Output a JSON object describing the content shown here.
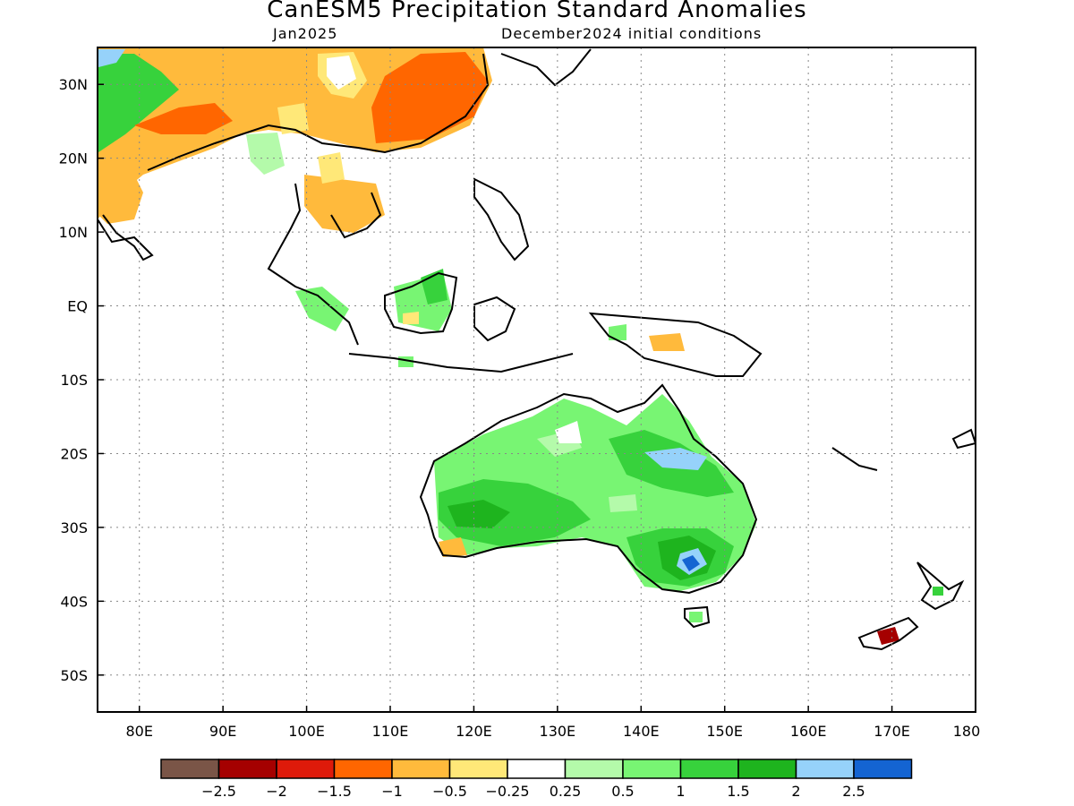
{
  "title": "CanESM5 Precipitation Standard Anomalies",
  "valid_month": "Jan2025",
  "initial_conditions": "December2024 initial conditions",
  "map": {
    "lon_range": [
      75,
      180
    ],
    "lat_range": [
      -55,
      35
    ],
    "x_ticks": [
      {
        "lon": 80,
        "label": "80E"
      },
      {
        "lon": 90,
        "label": "90E"
      },
      {
        "lon": 100,
        "label": "100E"
      },
      {
        "lon": 110,
        "label": "110E"
      },
      {
        "lon": 120,
        "label": "120E"
      },
      {
        "lon": 130,
        "label": "130E"
      },
      {
        "lon": 140,
        "label": "140E"
      },
      {
        "lon": 150,
        "label": "150E"
      },
      {
        "lon": 160,
        "label": "160E"
      },
      {
        "lon": 170,
        "label": "170E"
      },
      {
        "lon": 180,
        "label": "180"
      }
    ],
    "y_ticks": [
      {
        "lat": 30,
        "label": "30N"
      },
      {
        "lat": 20,
        "label": "20N"
      },
      {
        "lat": 10,
        "label": "10N"
      },
      {
        "lat": 0,
        "label": "EQ"
      },
      {
        "lat": -10,
        "label": "10S"
      },
      {
        "lat": -20,
        "label": "20S"
      },
      {
        "lat": -30,
        "label": "30S"
      },
      {
        "lat": -40,
        "label": "40S"
      },
      {
        "lat": -50,
        "label": "50S"
      }
    ],
    "grid": true
  },
  "colorbar": {
    "colors": [
      "#7a5547",
      "#a50000",
      "#de1a0a",
      "#ff6600",
      "#ffba3c",
      "#ffe878",
      "#ffffff",
      "#b4faaa",
      "#78f573",
      "#37d23c",
      "#1eb41e",
      "#96d2fa",
      "#1464d2"
    ],
    "labels": [
      "−2.5",
      "−2",
      "−1.5",
      "−1",
      "−0.5",
      "−0.25",
      "0.25",
      "0.5",
      "1",
      "1.5",
      "2",
      "2.5"
    ]
  }
}
